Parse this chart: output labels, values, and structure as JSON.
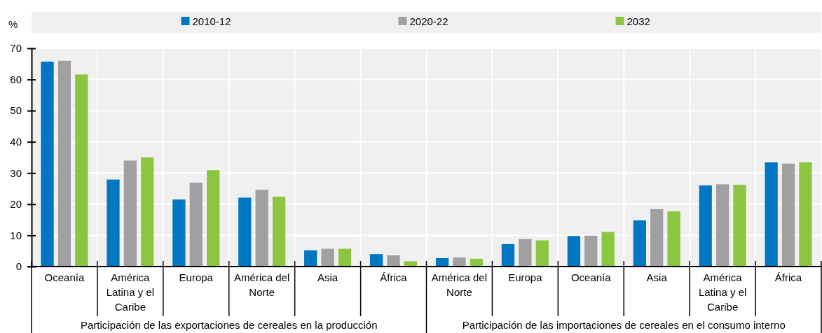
{
  "chart_data": {
    "type": "bar",
    "ylabel": "%",
    "categories": [
      "Oceanía",
      "América Latina y el Caribe",
      "Europa",
      "América del Norte",
      "Asia",
      "África",
      "América del Norte",
      "Europa",
      "Oceanía",
      "Asia",
      "América Latina y el Caribe",
      "África"
    ],
    "series": [
      {
        "name": "2010-12",
        "color": "#0077c0",
        "values": [
          65.7,
          27.9,
          21.5,
          22.1,
          5.2,
          4.0,
          2.7,
          7.2,
          9.8,
          14.8,
          26.0,
          33.4
        ]
      },
      {
        "name": "2020-22",
        "color": "#a0a0a0",
        "values": [
          66.0,
          34.0,
          26.9,
          24.6,
          5.7,
          3.6,
          2.9,
          8.8,
          9.9,
          18.4,
          26.4,
          33.0
        ]
      },
      {
        "name": "2032",
        "color": "#8cc540",
        "values": [
          61.6,
          35.0,
          30.9,
          22.4,
          5.7,
          1.7,
          2.5,
          8.4,
          11.1,
          17.7,
          26.2,
          33.4
        ]
      }
    ],
    "annotations": [
      "Participación de las exportaciones de cereales en la producción",
      "Participación de las importaciones de cereales en el consumo interno"
    ],
    "ylim": [
      0,
      70
    ],
    "yticks": [
      0,
      10,
      20,
      30,
      40,
      50,
      60,
      70
    ],
    "grid": true,
    "legend": "top"
  }
}
